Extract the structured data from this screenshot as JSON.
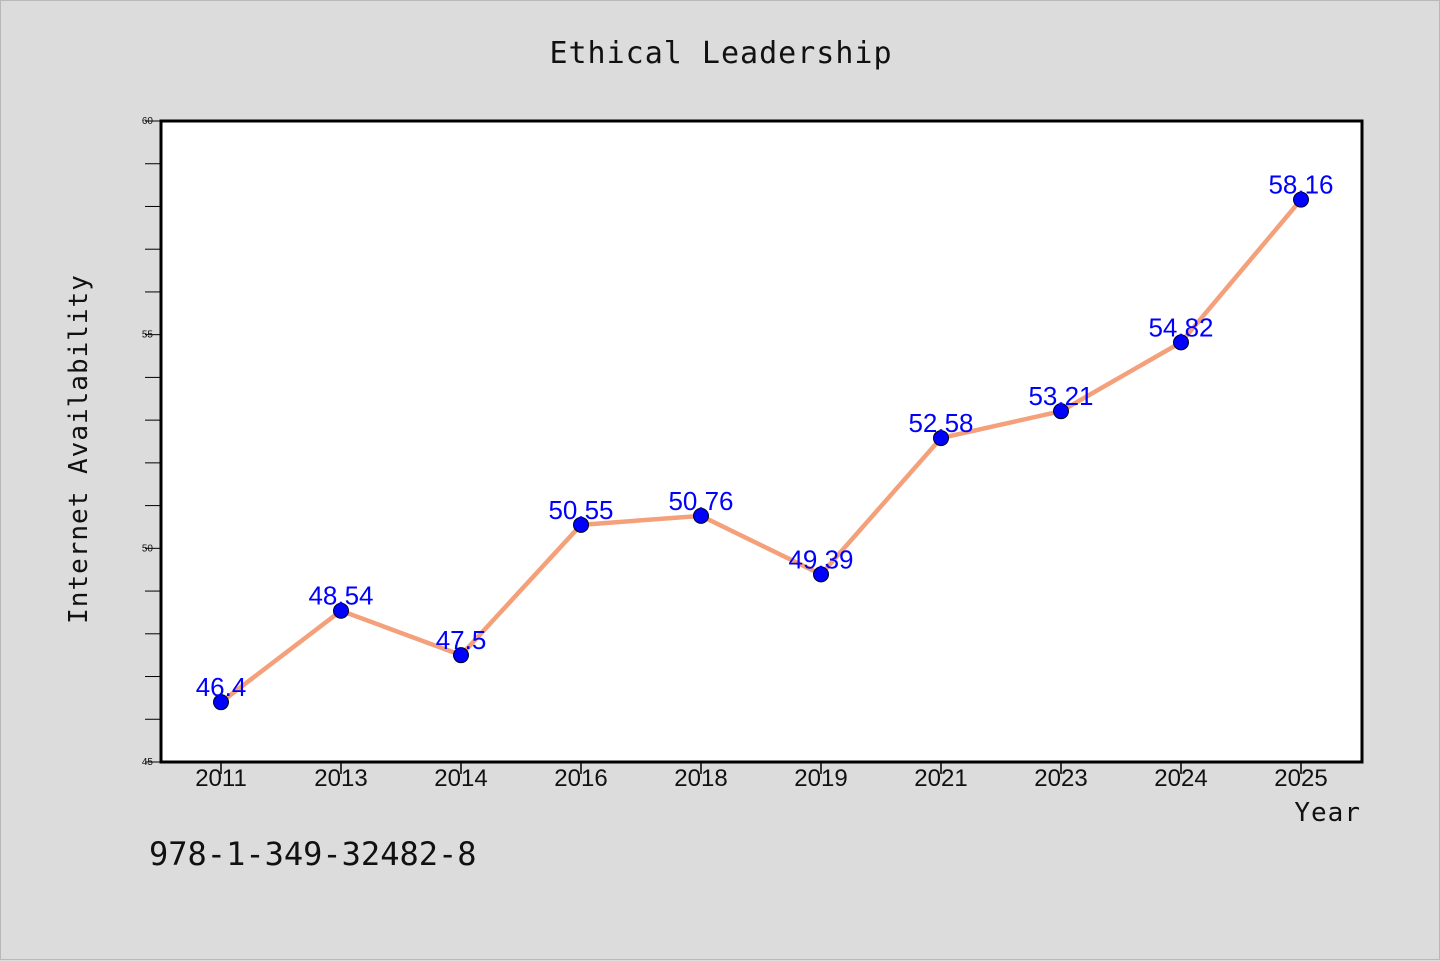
{
  "chart_data": {
    "type": "line",
    "title": "Ethical Leadership",
    "xlabel": "Year",
    "ylabel": "Internet Availability",
    "categories": [
      "2011",
      "2013",
      "2014",
      "2016",
      "2018",
      "2019",
      "2021",
      "2023",
      "2024",
      "2025"
    ],
    "series": [
      {
        "values": [
          46.4,
          48.54,
          47.5,
          50.55,
          50.76,
          49.39,
          52.58,
          53.21,
          54.82,
          58.16
        ],
        "labels": [
          "46.4",
          "48.54",
          "47.5",
          "50.55",
          "50.76",
          "49.39",
          "52.58",
          "53.21",
          "54.82",
          "58.16"
        ],
        "line_color": "#f4a07a",
        "marker_color": "#0000ff"
      }
    ],
    "ylim": [
      45,
      60
    ],
    "yticks": [
      "45",
      "50",
      "55",
      "60"
    ],
    "grid": false,
    "legend": "none"
  },
  "annotation": "978-1-349-32482-8"
}
